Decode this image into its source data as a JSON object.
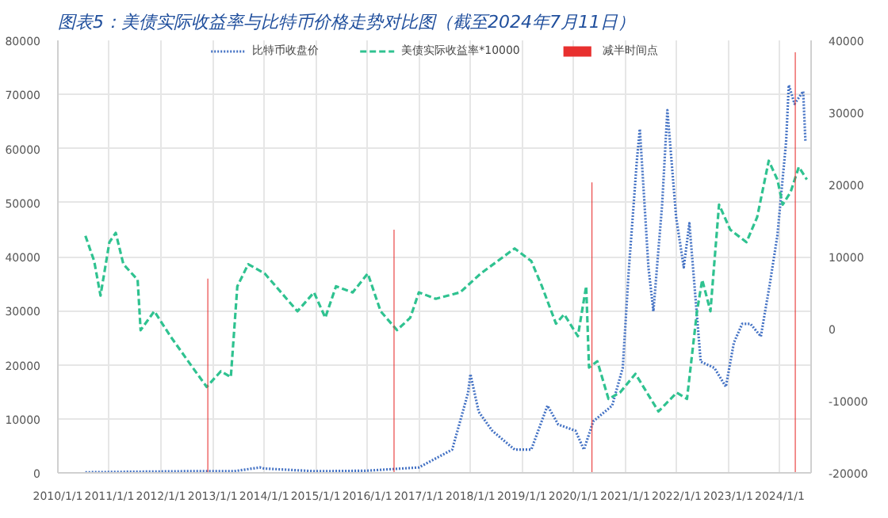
{
  "chart_data": {
    "type": "line",
    "title": "图表5：美债实际收益率与比特币价格走势对比图（截至2024年7月11日）",
    "xlim": [
      "2010-01-01",
      "2024-08-10"
    ],
    "xticks": [
      {
        "value": "2010-01-01",
        "label": "2010/1/1"
      },
      {
        "value": "2011-01-01",
        "label": "2011/1/1"
      },
      {
        "value": "2012-01-01",
        "label": "2012/1/1"
      },
      {
        "value": "2013-01-01",
        "label": "2013/1/1"
      },
      {
        "value": "2014-01-01",
        "label": "2014/1/1"
      },
      {
        "value": "2015-01-01",
        "label": "2015/1/1"
      },
      {
        "value": "2016-01-01",
        "label": "2016/1/1"
      },
      {
        "value": "2017-01-01",
        "label": "2017/1/1"
      },
      {
        "value": "2018-01-01",
        "label": "2018/1/1"
      },
      {
        "value": "2019-01-01",
        "label": "2019/1/1"
      },
      {
        "value": "2020-01-01",
        "label": "2020/1/1"
      },
      {
        "value": "2021-01-01",
        "label": "2021/1/1"
      },
      {
        "value": "2022-01-01",
        "label": "2022/1/1"
      },
      {
        "value": "2023-01-01",
        "label": "2023/1/1"
      },
      {
        "value": "2024-01-01",
        "label": "2024/1/1"
      }
    ],
    "ylim": [
      0,
      80000
    ],
    "yticks": [
      0,
      10000,
      20000,
      30000,
      40000,
      50000,
      60000,
      70000,
      80000
    ],
    "y2lim": [
      -20000,
      40000
    ],
    "y2ticks": [
      -20000,
      -10000,
      0,
      10000,
      20000,
      30000,
      40000
    ],
    "grid": true,
    "legend": "top",
    "series": [
      {
        "name": "比特币收盘价",
        "color": "#4472c4",
        "line_style": "dotted",
        "x": [
          "2010-07-15",
          "2011-06-01",
          "2012-06-01",
          "2013-06-01",
          "2013-12-01",
          "2014-01-01",
          "2015-01-01",
          "2016-01-01",
          "2017-01-01",
          "2017-08-25",
          "2017-12-15",
          "2018-01-01",
          "2018-03-01",
          "2018-06-05",
          "2018-11-10",
          "2019-03-08",
          "2019-07-01",
          "2019-09-15",
          "2020-01-15",
          "2020-03-15",
          "2020-05-20",
          "2020-10-01",
          "2020-12-15",
          "2021-01-25",
          "2021-03-25",
          "2021-04-15",
          "2021-06-15",
          "2021-07-20",
          "2021-09-20",
          "2021-10-27",
          "2021-12-28",
          "2022-02-20",
          "2022-04-01",
          "2022-06-20",
          "2022-09-25",
          "2022-12-15",
          "2023-02-10",
          "2023-04-10",
          "2023-06-08",
          "2023-08-20",
          "2023-10-20",
          "2023-12-15",
          "2024-02-15",
          "2024-03-05",
          "2024-04-15",
          "2024-06-15",
          "2024-07-01"
        ],
        "values": [
          100,
          200,
          300,
          300,
          1000,
          800,
          300,
          400,
          1000,
          4300,
          14770,
          18250,
          11280,
          7790,
          4300,
          4300,
          12440,
          8950,
          7790,
          4300,
          9530,
          12440,
          19420,
          36860,
          57790,
          63600,
          38000,
          29880,
          49650,
          67090,
          47330,
          38020,
          46160,
          20580,
          19420,
          15930,
          24070,
          27560,
          27560,
          25230,
          34530,
          43840,
          61280,
          71740,
          68260,
          70580,
          61280
        ]
      },
      {
        "name": "美债实际收益率*10000",
        "color": "#2fc290",
        "line_style": "dashed",
        "axis": "y2",
        "x": [
          "2010-07-15",
          "2010-09-15",
          "2010-10-30",
          "2011-01-01",
          "2011-02-15",
          "2011-04-10",
          "2011-07-20",
          "2011-08-10",
          "2011-11-15",
          "2012-03-10",
          "2012-08-15",
          "2012-11-20",
          "2013-03-01",
          "2013-05-10",
          "2013-06-25",
          "2013-09-10",
          "2014-01-05",
          "2014-05-01",
          "2014-08-25",
          "2014-12-20",
          "2015-03-10",
          "2015-05-25",
          "2015-09-20",
          "2016-01-05",
          "2016-04-05",
          "2016-07-30",
          "2016-11-01",
          "2017-01-01",
          "2017-05-01",
          "2017-10-20",
          "2018-03-15",
          "2018-11-10",
          "2019-03-08",
          "2019-05-22",
          "2019-08-30",
          "2019-10-27",
          "2020-02-01",
          "2020-03-31",
          "2020-04-20",
          "2020-06-18",
          "2020-09-05",
          "2020-11-25",
          "2021-03-15",
          "2021-08-25",
          "2022-01-01",
          "2022-03-15",
          "2022-05-25",
          "2022-07-01",
          "2022-08-28",
          "2022-10-28",
          "2023-01-15",
          "2023-05-10",
          "2023-07-25",
          "2023-10-15",
          "2023-12-15",
          "2024-01-22",
          "2024-03-18",
          "2024-05-15",
          "2024-07-11"
        ],
        "values": [
          12880,
          9390,
          4600,
          12000,
          13300,
          8950,
          6780,
          -200,
          2420,
          -1100,
          -5450,
          -8070,
          -5900,
          -6730,
          5880,
          8950,
          7660,
          5040,
          2420,
          5040,
          1530,
          5880,
          5040,
          7660,
          2420,
          -200,
          1530,
          5040,
          4150,
          5040,
          7650,
          11130,
          9390,
          5910,
          700,
          2000,
          -1040,
          5900,
          -5390,
          -4520,
          -9740,
          -8870,
          -6260,
          -11480,
          -8870,
          -9740,
          2430,
          6780,
          2430,
          17220,
          13740,
          12000,
          15480,
          23300,
          20700,
          17220,
          18960,
          22430,
          20700
        ]
      },
      {
        "name": "减半时间点",
        "color": "#e8302f",
        "type": "bar",
        "x": [
          "2012-11-28",
          "2016-07-09",
          "2020-05-11",
          "2024-04-20"
        ],
        "values": [
          35930,
          45000,
          53720,
          77790
        ]
      }
    ]
  }
}
